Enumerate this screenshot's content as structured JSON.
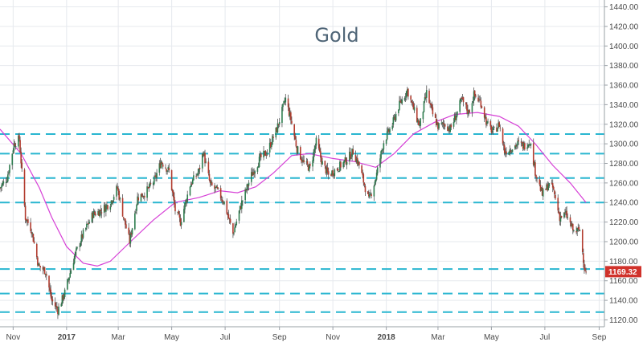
{
  "chart_data": {
    "type": "candlestick",
    "title": "Gold",
    "xlabel": "",
    "ylabel": "",
    "ylim": [
      1113,
      1447
    ],
    "y_ticks": [
      1120,
      1140,
      1160,
      1180,
      1200,
      1220,
      1240,
      1260,
      1280,
      1300,
      1320,
      1340,
      1360,
      1380,
      1400,
      1420,
      1440
    ],
    "y_tick_labels": [
      "1120.00",
      "1140.00",
      "1160.00",
      "1180.00",
      "1200.00",
      "1220.00",
      "1240.00",
      "1260.00",
      "1280.00",
      "1300.00",
      "1320.00",
      "1340.00",
      "1360.00",
      "1380.00",
      "1400.00",
      "1420.00",
      "1440.00"
    ],
    "x_range": [
      "2016-10-17",
      "2018-09-07"
    ],
    "x_ticks": [
      {
        "date": "2016-11-01",
        "label": "Nov",
        "bold": false
      },
      {
        "date": "2017-01-01",
        "label": "2017",
        "bold": true
      },
      {
        "date": "2017-03-01",
        "label": "Mar",
        "bold": false
      },
      {
        "date": "2017-05-01",
        "label": "May",
        "bold": false
      },
      {
        "date": "2017-07-01",
        "label": "Jul",
        "bold": false
      },
      {
        "date": "2017-09-01",
        "label": "Sep",
        "bold": false
      },
      {
        "date": "2017-11-01",
        "label": "Nov",
        "bold": false
      },
      {
        "date": "2018-01-01",
        "label": "2018",
        "bold": true
      },
      {
        "date": "2018-03-01",
        "label": "Mar",
        "bold": false
      },
      {
        "date": "2018-05-01",
        "label": "May",
        "bold": false
      },
      {
        "date": "2018-07-01",
        "label": "Jul",
        "bold": false
      },
      {
        "date": "2018-09-01",
        "label": "Sep",
        "bold": false
      }
    ],
    "last_price": 1169.32,
    "last_price_label": "1169.32",
    "horizontal_levels": [
      1310,
      1290,
      1265,
      1240,
      1172,
      1147,
      1128
    ],
    "price_path": [
      [
        "2016-10-17",
        1255
      ],
      [
        "2016-10-25",
        1265
      ],
      [
        "2016-11-02",
        1300
      ],
      [
        "2016-11-08",
        1305
      ],
      [
        "2016-11-15",
        1225
      ],
      [
        "2016-11-22",
        1212
      ],
      [
        "2016-11-30",
        1175
      ],
      [
        "2016-12-08",
        1170
      ],
      [
        "2016-12-15",
        1140
      ],
      [
        "2016-12-22",
        1130
      ],
      [
        "2016-12-30",
        1148
      ],
      [
        "2017-01-10",
        1185
      ],
      [
        "2017-01-20",
        1208
      ],
      [
        "2017-01-31",
        1228
      ],
      [
        "2017-02-10",
        1232
      ],
      [
        "2017-02-20",
        1240
      ],
      [
        "2017-02-28",
        1255
      ],
      [
        "2017-03-07",
        1225
      ],
      [
        "2017-03-14",
        1200
      ],
      [
        "2017-03-23",
        1245
      ],
      [
        "2017-04-01",
        1250
      ],
      [
        "2017-04-11",
        1262
      ],
      [
        "2017-04-19",
        1282
      ],
      [
        "2017-04-28",
        1272
      ],
      [
        "2017-05-05",
        1232
      ],
      [
        "2017-05-11",
        1220
      ],
      [
        "2017-05-22",
        1258
      ],
      [
        "2017-06-01",
        1272
      ],
      [
        "2017-06-06",
        1292
      ],
      [
        "2017-06-14",
        1258
      ],
      [
        "2017-06-22",
        1252
      ],
      [
        "2017-06-30",
        1240
      ],
      [
        "2017-07-10",
        1208
      ],
      [
        "2017-07-20",
        1240
      ],
      [
        "2017-07-31",
        1268
      ],
      [
        "2017-08-10",
        1285
      ],
      [
        "2017-08-18",
        1292
      ],
      [
        "2017-08-29",
        1315
      ],
      [
        "2017-09-08",
        1346
      ],
      [
        "2017-09-14",
        1325
      ],
      [
        "2017-09-21",
        1295
      ],
      [
        "2017-09-29",
        1280
      ],
      [
        "2017-10-06",
        1275
      ],
      [
        "2017-10-13",
        1302
      ],
      [
        "2017-10-20",
        1280
      ],
      [
        "2017-10-27",
        1268
      ],
      [
        "2017-11-06",
        1275
      ],
      [
        "2017-11-15",
        1282
      ],
      [
        "2017-11-24",
        1292
      ],
      [
        "2017-12-01",
        1278
      ],
      [
        "2017-12-12",
        1242
      ],
      [
        "2017-12-20",
        1265
      ],
      [
        "2017-12-29",
        1302
      ],
      [
        "2018-01-08",
        1320
      ],
      [
        "2018-01-15",
        1338
      ],
      [
        "2018-01-25",
        1355
      ],
      [
        "2018-02-02",
        1333
      ],
      [
        "2018-02-08",
        1318
      ],
      [
        "2018-02-16",
        1352
      ],
      [
        "2018-02-23",
        1330
      ],
      [
        "2018-03-01",
        1318
      ],
      [
        "2018-03-09",
        1320
      ],
      [
        "2018-03-15",
        1315
      ],
      [
        "2018-03-22",
        1330
      ],
      [
        "2018-03-28",
        1345
      ],
      [
        "2018-04-05",
        1332
      ],
      [
        "2018-04-11",
        1350
      ],
      [
        "2018-04-19",
        1342
      ],
      [
        "2018-04-26",
        1320
      ],
      [
        "2018-05-03",
        1312
      ],
      [
        "2018-05-10",
        1320
      ],
      [
        "2018-05-16",
        1292
      ],
      [
        "2018-05-23",
        1295
      ],
      [
        "2018-05-31",
        1300
      ],
      [
        "2018-06-07",
        1298
      ],
      [
        "2018-06-14",
        1303
      ],
      [
        "2018-06-20",
        1272
      ],
      [
        "2018-06-28",
        1248
      ],
      [
        "2018-07-05",
        1258
      ],
      [
        "2018-07-10",
        1255
      ],
      [
        "2018-07-18",
        1225
      ],
      [
        "2018-07-25",
        1228
      ],
      [
        "2018-08-03",
        1210
      ],
      [
        "2018-08-10",
        1212
      ],
      [
        "2018-08-15",
        1175
      ],
      [
        "2018-08-17",
        1169.32
      ]
    ],
    "moving_average": [
      [
        "2016-10-17",
        1315
      ],
      [
        "2016-11-10",
        1290
      ],
      [
        "2016-12-01",
        1255
      ],
      [
        "2016-12-15",
        1225
      ],
      [
        "2017-01-01",
        1195
      ],
      [
        "2017-01-20",
        1178
      ],
      [
        "2017-02-05",
        1175
      ],
      [
        "2017-02-20",
        1180
      ],
      [
        "2017-03-15",
        1200
      ],
      [
        "2017-04-10",
        1222
      ],
      [
        "2017-05-05",
        1240
      ],
      [
        "2017-06-01",
        1245
      ],
      [
        "2017-06-25",
        1252
      ],
      [
        "2017-07-15",
        1250
      ],
      [
        "2017-08-05",
        1256
      ],
      [
        "2017-08-25",
        1270
      ],
      [
        "2017-09-15",
        1288
      ],
      [
        "2017-10-05",
        1290
      ],
      [
        "2017-11-01",
        1285
      ],
      [
        "2017-11-25",
        1282
      ],
      [
        "2017-12-20",
        1276
      ],
      [
        "2018-01-10",
        1290
      ],
      [
        "2018-02-01",
        1310
      ],
      [
        "2018-02-25",
        1322
      ],
      [
        "2018-03-20",
        1330
      ],
      [
        "2018-04-15",
        1332
      ],
      [
        "2018-05-10",
        1328
      ],
      [
        "2018-06-01",
        1318
      ],
      [
        "2018-06-20",
        1300
      ],
      [
        "2018-07-10",
        1278
      ],
      [
        "2018-07-30",
        1260
      ],
      [
        "2018-08-17",
        1240
      ]
    ],
    "colors": {
      "up_candle": "#2e7d4f",
      "down_candle": "#b23b2e",
      "wick": "#555555",
      "moving_average": "#d63fd6",
      "level_line": "#29b6d0",
      "grid": "#e6e9ee",
      "price_tag": "#d0322b"
    }
  }
}
